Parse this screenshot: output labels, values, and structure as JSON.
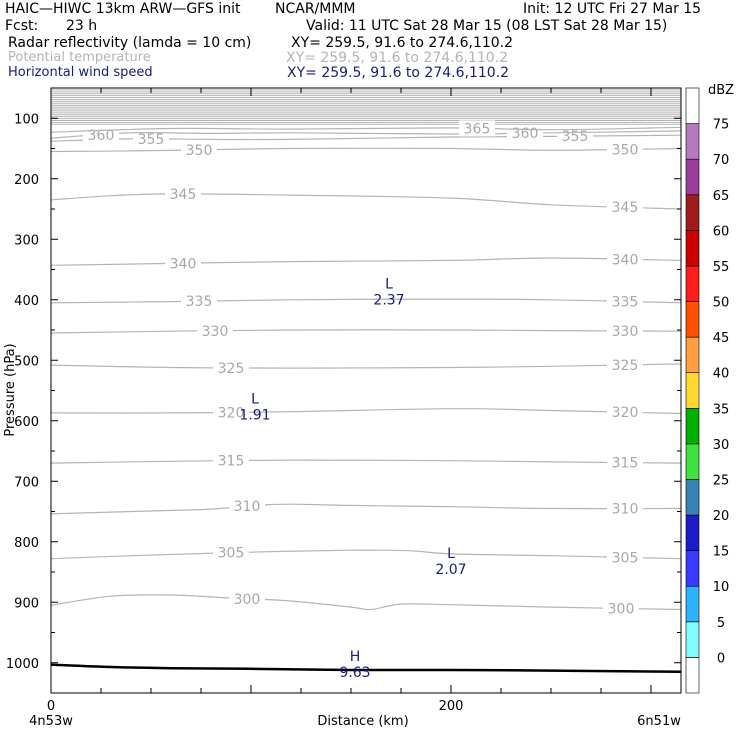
{
  "header": {
    "model": "HAIC—HIWC 13km ARW—GFS init",
    "org": "NCAR/MMM",
    "init": "Init: 12 UTC Fri 27 Mar 15",
    "fcst_label": "Fcst:",
    "fcst_value": "23 h",
    "valid": "Valid: 11 UTC Sat 28 Mar 15 (08 LST Sat 28 Mar 15)",
    "fields": [
      {
        "name": "Radar reflectivity (lamda = 10 cm)",
        "xy": "XY= 259.5, 91.6 to 274.6,110.2",
        "color": "#000000"
      },
      {
        "name": "Potential temperature",
        "xy": "XY= 259.5, 91.6 to 274.6,110.2",
        "color": "#b4b4b4"
      },
      {
        "name": "Horizontal wind speed",
        "xy": "XY= 259.5, 91.6 to 274.6,110.2",
        "color": "#1a1a80"
      }
    ]
  },
  "chart_data": {
    "type": "line",
    "ylabel": "Pressure (hPa)",
    "xlabel": "Distance (km)",
    "x_start_label": "4n53w",
    "x_end_label": "6n51w",
    "xlim": [
      0,
      315
    ],
    "ylim": [
      1050,
      50
    ],
    "x_ticks": [
      0,
      200
    ],
    "x_tick_labels": [
      "0",
      "200"
    ],
    "y_ticks": [
      100,
      200,
      300,
      400,
      500,
      600,
      700,
      800,
      900,
      1000
    ],
    "y_tick_labels": [
      "100",
      "200",
      "300",
      "400",
      "500",
      "600",
      "700",
      "800",
      "900",
      "1000"
    ],
    "theta_contours": [
      {
        "level": "300",
        "points": [
          [
            0,
            905
          ],
          [
            30,
            890
          ],
          [
            60,
            888
          ],
          [
            90,
            893
          ],
          [
            120,
            898
          ],
          [
            150,
            908
          ],
          [
            160,
            912
          ],
          [
            175,
            903
          ],
          [
            200,
            904
          ],
          [
            250,
            908
          ],
          [
            315,
            912
          ]
        ],
        "labels": [
          [
            98,
            "x"
          ],
          [
            285,
            "x"
          ]
        ]
      },
      {
        "level": "305",
        "points": [
          [
            0,
            828
          ],
          [
            40,
            823
          ],
          [
            90,
            818
          ],
          [
            150,
            814
          ],
          [
            180,
            815
          ],
          [
            200,
            820
          ],
          [
            250,
            823
          ],
          [
            315,
            828
          ]
        ],
        "labels": [
          [
            90,
            "x"
          ],
          [
            287,
            "x"
          ]
        ]
      },
      {
        "level": "310",
        "points": [
          [
            0,
            754
          ],
          [
            40,
            750
          ],
          [
            80,
            746
          ],
          [
            100,
            740
          ],
          [
            120,
            738
          ],
          [
            150,
            740
          ],
          [
            200,
            742
          ],
          [
            250,
            745
          ],
          [
            315,
            745
          ]
        ],
        "labels": [
          [
            98,
            "x"
          ],
          [
            287,
            "x"
          ]
        ]
      },
      {
        "level": "315",
        "points": [
          [
            0,
            670
          ],
          [
            60,
            667
          ],
          [
            120,
            665
          ],
          [
            200,
            666
          ],
          [
            250,
            668
          ],
          [
            315,
            670
          ]
        ],
        "labels": [
          [
            90,
            "x"
          ],
          [
            287,
            "x"
          ]
        ]
      },
      {
        "level": "320",
        "points": [
          [
            0,
            587
          ],
          [
            60,
            587
          ],
          [
            120,
            585
          ],
          [
            200,
            580
          ],
          [
            250,
            583
          ],
          [
            315,
            588
          ]
        ],
        "labels": [
          [
            90,
            "x"
          ],
          [
            287,
            "x"
          ]
        ]
      },
      {
        "level": "325",
        "points": [
          [
            0,
            508
          ],
          [
            60,
            512
          ],
          [
            120,
            513
          ],
          [
            200,
            512
          ],
          [
            250,
            510
          ],
          [
            315,
            506
          ]
        ],
        "labels": [
          [
            90,
            "x"
          ],
          [
            287,
            "x"
          ]
        ]
      },
      {
        "level": "330",
        "points": [
          [
            0,
            455
          ],
          [
            60,
            452
          ],
          [
            120,
            450
          ],
          [
            200,
            450
          ],
          [
            250,
            451
          ],
          [
            315,
            452
          ]
        ],
        "labels": [
          [
            82,
            "x"
          ],
          [
            287,
            "x"
          ]
        ]
      },
      {
        "level": "335",
        "points": [
          [
            0,
            405
          ],
          [
            60,
            403
          ],
          [
            120,
            400
          ],
          [
            200,
            399
          ],
          [
            250,
            400
          ],
          [
            315,
            405
          ]
        ],
        "labels": [
          [
            74,
            "x"
          ],
          [
            287,
            "x"
          ]
        ]
      },
      {
        "level": "340",
        "points": [
          [
            0,
            343
          ],
          [
            60,
            340
          ],
          [
            120,
            337
          ],
          [
            200,
            335
          ],
          [
            250,
            331
          ],
          [
            315,
            335
          ]
        ],
        "labels": [
          [
            66,
            "x"
          ],
          [
            287,
            "x"
          ]
        ]
      },
      {
        "level": "345",
        "points": [
          [
            0,
            235
          ],
          [
            30,
            228
          ],
          [
            60,
            225
          ],
          [
            120,
            227
          ],
          [
            200,
            232
          ],
          [
            250,
            243
          ],
          [
            315,
            250
          ]
        ],
        "labels": [
          [
            66,
            "x"
          ],
          [
            287,
            "x"
          ]
        ]
      },
      {
        "level": "350",
        "points": [
          [
            0,
            155
          ],
          [
            40,
            154
          ],
          [
            80,
            152
          ],
          [
            120,
            150
          ],
          [
            200,
            150
          ],
          [
            250,
            153
          ],
          [
            315,
            150
          ]
        ],
        "labels": [
          [
            74,
            "x"
          ],
          [
            287,
            "x"
          ]
        ]
      },
      {
        "level": "355",
        "points": [
          [
            0,
            138
          ],
          [
            40,
            134
          ],
          [
            80,
            135
          ],
          [
            120,
            135
          ],
          [
            200,
            131
          ],
          [
            250,
            130
          ],
          [
            315,
            128
          ]
        ],
        "labels": [
          [
            50,
            "x"
          ],
          [
            262,
            "x"
          ]
        ]
      },
      {
        "level": "360",
        "points": [
          [
            0,
            133
          ],
          [
            40,
            124
          ],
          [
            80,
            125
          ],
          [
            120,
            124
          ],
          [
            200,
            126
          ],
          [
            250,
            124
          ],
          [
            315,
            121
          ]
        ],
        "labels": [
          [
            25,
            "x"
          ],
          [
            237,
            "x"
          ]
        ]
      },
      {
        "level": "365",
        "points": [
          [
            0,
            123
          ],
          [
            60,
            117
          ],
          [
            120,
            118
          ],
          [
            200,
            116
          ],
          [
            250,
            119
          ],
          [
            315,
            115
          ]
        ],
        "labels": [
          [
            213,
            "x"
          ]
        ]
      }
    ],
    "top_contour_band": {
      "from": 50,
      "to": 110,
      "count": 20
    },
    "surface": {
      "points": [
        [
          0,
          1003
        ],
        [
          30,
          1007
        ],
        [
          60,
          1009
        ],
        [
          100,
          1010
        ],
        [
          150,
          1012
        ],
        [
          200,
          1012
        ],
        [
          250,
          1013
        ],
        [
          315,
          1015
        ]
      ]
    },
    "wind_extrema": [
      {
        "type": "L",
        "value": "2.37",
        "x": 169,
        "p": 395
      },
      {
        "type": "L",
        "value": "1.91",
        "x": 102,
        "p": 585
      },
      {
        "type": "L",
        "value": "2.07",
        "x": 200,
        "p": 840
      },
      {
        "type": "H",
        "value": "9.63",
        "x": 152,
        "p": 1010
      }
    ],
    "colorbar": {
      "unit": "dBZ",
      "levels": [
        "0",
        "5",
        "10",
        "15",
        "20",
        "25",
        "30",
        "35",
        "40",
        "45",
        "50",
        "55",
        "60",
        "65",
        "70",
        "75"
      ],
      "colors": [
        "#ffffff",
        "#7ffcfc",
        "#2eb4ff",
        "#3a3aff",
        "#1c1cc8",
        "#3882b8",
        "#40e040",
        "#00b000",
        "#ffd830",
        "#ffa040",
        "#ff5000",
        "#ff1c1c",
        "#cc0000",
        "#a01c1c",
        "#9c3c9c",
        "#b878c0",
        "#ffffff"
      ]
    }
  }
}
